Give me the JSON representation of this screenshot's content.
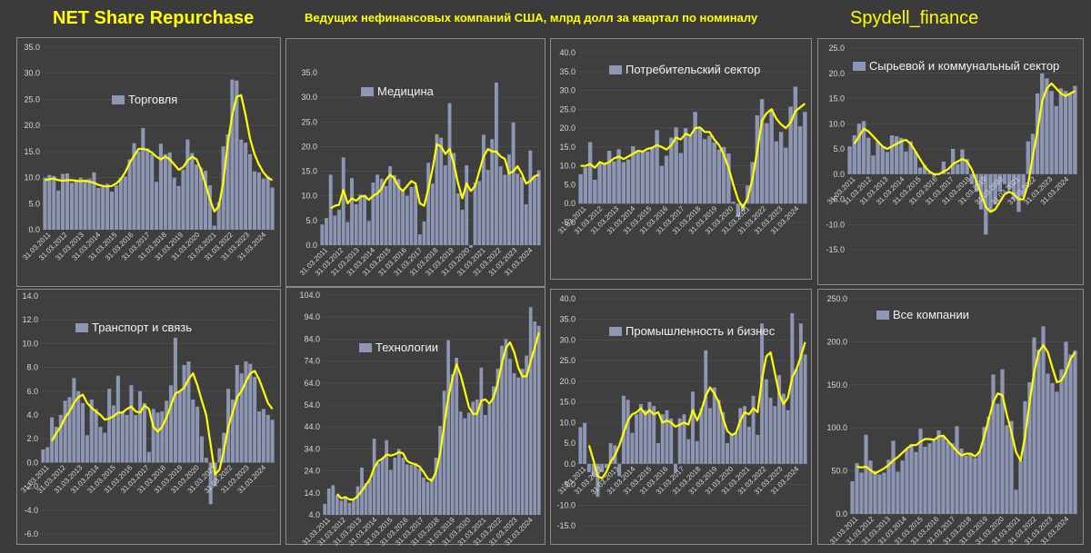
{
  "header": {
    "left": "NET Share Repurchase",
    "center": "Ведущих нефинансовых компаний США, млрд долл за квартал по номиналу",
    "right": "Spydell_finance"
  },
  "colors": {
    "bar": "#8d97b4",
    "line": "#ffff00",
    "text": "#d8d8d8",
    "grid": "#555555",
    "background": "#3f3f3f"
  },
  "year_labels": [
    "31.03.2011",
    "31.03.2012",
    "31.03.2013",
    "31.03.2014",
    "31.03.2015",
    "31.03.2016",
    "31.03.2017",
    "31.03.2018",
    "31.03.2019",
    "31.03.2020",
    "31.03.2021",
    "31.03.2022",
    "31.03.2023",
    "31.03.2024"
  ],
  "chart_data": [
    {
      "type": "bar",
      "title": "Торговля",
      "ylim": [
        0,
        35
      ],
      "yticks": [
        "0.0",
        "5.0",
        "10.0",
        "15.0",
        "20.0",
        "25.0",
        "30.0",
        "35.0"
      ],
      "values": [
        10.0,
        10.5,
        10.3,
        7.5,
        10.7,
        10.8,
        9.0,
        9.3,
        10.0,
        9.6,
        9.8,
        11.0,
        8.0,
        8.2,
        8.8,
        7.3,
        8.5,
        10.0,
        10.2,
        13.5,
        16.6,
        15.0,
        19.5,
        15.6,
        14.5,
        9.2,
        16.5,
        14.5,
        14.8,
        10.0,
        8.4,
        11.5,
        17.3,
        14.7,
        12.5,
        11.9,
        11.3,
        8.5,
        0.8,
        5.3,
        16.0,
        18.3,
        28.8,
        28.6,
        17.3,
        16.7,
        14.5,
        11.2,
        11.0,
        9.8,
        10.2,
        8.1
      ],
      "ma": [
        9.5,
        9.7,
        9.8,
        9.5,
        9.4,
        9.5,
        9.5,
        9.4,
        9.3,
        9.4,
        9.2,
        9.0,
        8.6,
        8.4,
        8.3,
        8.4,
        8.9,
        9.7,
        11.0,
        12.8,
        14.2,
        15.5,
        15.5,
        15.3,
        14.8,
        14.0,
        13.5,
        14.0,
        13.5,
        12.5,
        11.5,
        12.0,
        13.3,
        14.0,
        13.5,
        11.5,
        8.8,
        5.8,
        3.5,
        4.5,
        9.2,
        16.5,
        22.0,
        25.5,
        25.8,
        22.0,
        17.5,
        14.5,
        12.5,
        11.0,
        10.0,
        9.5
      ]
    },
    {
      "type": "bar",
      "title": "Медицина",
      "ylim": [
        0,
        35
      ],
      "yticks": [
        "0.0",
        "5.0",
        "10.0",
        "15.0",
        "20.0",
        "25.0",
        "30.0",
        "35.0"
      ],
      "values": [
        4.2,
        5.5,
        14.3,
        6.0,
        7.2,
        17.8,
        4.7,
        13.6,
        8.3,
        10.3,
        10.2,
        4.9,
        12.7,
        14.3,
        13.5,
        12.0,
        16.0,
        14.2,
        13.4,
        11.0,
        10.0,
        11.8,
        12.0,
        2.2,
        4.8,
        16.7,
        12.5,
        22.5,
        21.8,
        16.2,
        28.8,
        18.7,
        10.5,
        7.2,
        16.2,
        -0.5,
        12.7,
        13.0,
        22.4,
        15.3,
        21.5,
        33.0,
        16.0,
        14.3,
        18.4,
        24.9,
        14.5,
        13.8,
        8.3,
        19.2,
        14.0,
        15.2
      ],
      "ma": [
        null,
        null,
        7.5,
        8.0,
        8.2,
        11.2,
        8.5,
        9.5,
        9.0,
        9.8,
        10.0,
        9.2,
        10.0,
        10.5,
        11.5,
        13.2,
        14.3,
        13.5,
        11.8,
        11.0,
        12.0,
        13.0,
        12.5,
        8.5,
        8.0,
        11.5,
        15.5,
        20.5,
        20.0,
        18.5,
        19.5,
        16.5,
        12.5,
        9.5,
        12.5,
        11.0,
        12.0,
        15.0,
        18.0,
        19.5,
        19.0,
        19.0,
        18.0,
        17.5,
        14.5,
        15.0,
        16.0,
        14.5,
        12.5,
        13.0,
        14.0,
        14.3
      ]
    },
    {
      "type": "bar",
      "title": "Потребительский сектор",
      "ylim": [
        -5,
        40
      ],
      "yticks": [
        "-5.0",
        "0.0",
        "5.0",
        "10.0",
        "15.0",
        "20.0",
        "25.0",
        "30.0",
        "35.0",
        "40.0"
      ],
      "values": [
        7.8,
        9.6,
        16.3,
        6.3,
        10.8,
        10.7,
        14.0,
        11.2,
        14.4,
        11.0,
        11.7,
        15.2,
        13.8,
        14.0,
        13.8,
        15.0,
        19.5,
        10.0,
        12.7,
        17.5,
        20.2,
        13.4,
        20.0,
        18.0,
        24.3,
        20.0,
        17.1,
        18.0,
        16.2,
        14.3,
        15.0,
        13.3,
        0.5,
        -3.5,
        -2.0,
        4.8,
        11.0,
        23.4,
        27.7,
        21.3,
        25.0,
        16.5,
        19.0,
        14.8,
        25.7,
        31.0,
        20.5,
        24.3
      ],
      "ma": [
        10.0,
        10.0,
        10.5,
        9.5,
        11.0,
        10.5,
        11.0,
        12.0,
        12.5,
        11.8,
        12.5,
        13.2,
        14.0,
        13.8,
        14.5,
        14.8,
        15.5,
        15.0,
        14.3,
        15.5,
        17.5,
        17.0,
        18.5,
        18.0,
        20.0,
        20.2,
        19.0,
        19.0,
        17.0,
        15.5,
        13.0,
        9.5,
        5.0,
        1.0,
        -1.0,
        1.5,
        6.5,
        14.0,
        22.0,
        24.0,
        25.0,
        22.5,
        21.0,
        20.0,
        21.5,
        24.5,
        25.5,
        26.5
      ]
    },
    {
      "type": "bar",
      "title": "Сырьевой и коммунальный сектор",
      "ylim": [
        -15,
        25
      ],
      "yticks": [
        "-15.0",
        "-10.0",
        "-5.0",
        "0.0",
        "5.0",
        "10.0",
        "15.0",
        "20.0",
        "25.0"
      ],
      "values": [
        5.5,
        7.7,
        10.0,
        10.5,
        7.2,
        3.7,
        6.5,
        5.4,
        4.4,
        7.7,
        7.5,
        7.2,
        4.5,
        6.5,
        4.5,
        1.3,
        1.8,
        0.4,
        -0.5,
        0.2,
        2.5,
        0.4,
        5.0,
        2.0,
        4.9,
        3.0,
        -2.0,
        -3.5,
        -7.0,
        -12.0,
        -7.5,
        -6.0,
        -3.5,
        -2.0,
        -3.0,
        -5.0,
        -7.5,
        -4.5,
        6.5,
        8.0,
        16.0,
        20.0,
        19.0,
        16.5,
        13.5,
        17.0,
        16.5,
        16.0,
        17.5
      ],
      "ma": [
        null,
        6.0,
        7.5,
        9.0,
        8.5,
        7.5,
        6.5,
        5.5,
        5.0,
        5.5,
        6.0,
        6.5,
        6.8,
        6.0,
        4.5,
        3.0,
        1.5,
        0.5,
        0.0,
        0.0,
        0.5,
        1.0,
        2.0,
        2.5,
        3.0,
        2.5,
        1.0,
        -1.5,
        -4.0,
        -6.5,
        -7.5,
        -7.0,
        -5.5,
        -4.0,
        -3.5,
        -4.0,
        -5.0,
        -5.0,
        -2.0,
        3.5,
        8.5,
        14.5,
        17.0,
        18.0,
        17.0,
        16.0,
        15.5,
        16.0,
        16.5
      ]
    },
    {
      "type": "bar",
      "title": "Транспорт и связь",
      "ylim": [
        -6,
        14
      ],
      "yticks": [
        "-6.0",
        "-4.0",
        "-2.0",
        "0.0",
        "2.0",
        "4.0",
        "6.0",
        "8.0",
        "10.0",
        "12.0",
        "14.0"
      ],
      "values": [
        1.1,
        1.3,
        3.8,
        3.0,
        4.0,
        5.2,
        5.5,
        7.1,
        6.0,
        5.0,
        2.3,
        5.3,
        4.5,
        3.0,
        2.5,
        6.2,
        4.8,
        7.3,
        4.3,
        4.0,
        6.5,
        4.0,
        6.0,
        5.0,
        0.9,
        4.5,
        4.2,
        4.3,
        5.2,
        6.5,
        10.5,
        6.0,
        8.2,
        8.5,
        5.3,
        4.7,
        2.2,
        0.4,
        -3.5,
        -2.0,
        1.2,
        2.5,
        6.2,
        5.3,
        8.2,
        7.5,
        8.5,
        8.3,
        7.2,
        4.3,
        4.5,
        4.0,
        3.6
      ],
      "ma": [
        null,
        null,
        1.8,
        2.5,
        3.0,
        3.8,
        4.3,
        5.0,
        5.5,
        5.7,
        5.0,
        4.6,
        4.3,
        4.0,
        3.6,
        3.7,
        3.9,
        4.2,
        4.2,
        4.5,
        4.7,
        4.3,
        4.2,
        4.8,
        4.5,
        3.0,
        2.6,
        3.0,
        3.8,
        4.8,
        5.8,
        6.0,
        6.3,
        7.0,
        7.5,
        6.5,
        5.2,
        4.0,
        1.5,
        -1.0,
        -0.6,
        1.0,
        3.0,
        4.2,
        5.5,
        6.0,
        6.8,
        7.5,
        7.7,
        7.0,
        6.0,
        5.0,
        4.5
      ]
    },
    {
      "type": "bar",
      "title": "Технологии",
      "ylim": [
        4,
        104
      ],
      "yticks": [
        "4.0",
        "14.0",
        "24.0",
        "34.0",
        "44.0",
        "54.0",
        "64.0",
        "74.0",
        "84.0",
        "94.0",
        "104.0"
      ],
      "values": [
        9.0,
        16.0,
        17.5,
        13.0,
        10.5,
        12.5,
        9.5,
        10.5,
        17.0,
        25.5,
        18.5,
        20.0,
        38.7,
        27.5,
        30.0,
        38.0,
        24.5,
        30.0,
        34.0,
        30.0,
        27.0,
        26.7,
        27.5,
        25.0,
        21.0,
        19.0,
        20.7,
        30.0,
        44.5,
        60.5,
        83.5,
        68.0,
        75.5,
        51.0,
        48.0,
        50.5,
        55.5,
        56.5,
        71.0,
        49.5,
        54.0,
        62.5,
        70.5,
        81.0,
        84.0,
        75.0,
        68.5,
        66.5,
        70.5,
        76.5,
        98.5,
        92.0,
        90.0
      ],
      "ma": [
        null,
        null,
        null,
        13.5,
        11.5,
        12.0,
        11.0,
        11.0,
        12.5,
        15.0,
        17.5,
        20.5,
        25.5,
        28.5,
        29.5,
        31.5,
        31.0,
        31.5,
        32.5,
        32.0,
        28.5,
        27.5,
        27.0,
        26.0,
        23.5,
        20.5,
        19.5,
        23.5,
        32.0,
        45.0,
        57.5,
        66.0,
        72.5,
        67.5,
        60.5,
        53.0,
        50.0,
        50.0,
        56.0,
        56.5,
        54.5,
        57.5,
        64.0,
        73.0,
        80.0,
        82.5,
        78.0,
        71.0,
        67.0,
        67.0,
        74.0,
        80.0,
        87.0
      ]
    },
    {
      "type": "bar",
      "title": "Промышленность и бизнес",
      "ylim": [
        -15,
        40
      ],
      "yticks": [
        "-15.0",
        "-10.0",
        "-5.0",
        "0.0",
        "5.0",
        "10.0",
        "15.0",
        "20.0",
        "25.0",
        "30.0",
        "35.0",
        "40.0"
      ],
      "values": [
        8.9,
        9.9,
        -2.0,
        -3.0,
        -8.0,
        -2.0,
        -1.0,
        5.0,
        4.5,
        -3.0,
        16.5,
        15.5,
        7.5,
        12.0,
        14.5,
        13.0,
        15.0,
        14.0,
        5.0,
        12.0,
        13.0,
        11.0,
        -2.0,
        11.0,
        12.0,
        6.0,
        17.5,
        5.5,
        13.5,
        27.5,
        13.5,
        18.5,
        15.5,
        12.5,
        5.0,
        7.0,
        7.5,
        13.5,
        14.0,
        9.0,
        16.5,
        7.0,
        34.0,
        20.5,
        16.0,
        14.0,
        21.5,
        17.0,
        13.0,
        36.5,
        23.0,
        34.0,
        26.5
      ],
      "ma": [
        null,
        null,
        4.5,
        1.0,
        -3.0,
        -3.5,
        -2.0,
        0.5,
        2.0,
        4.5,
        7.5,
        10.5,
        12.0,
        12.5,
        13.5,
        12.0,
        13.0,
        12.0,
        12.5,
        10.0,
        10.5,
        10.0,
        9.0,
        9.5,
        10.0,
        9.5,
        13.0,
        10.5,
        13.0,
        16.5,
        18.5,
        17.0,
        15.0,
        11.0,
        8.0,
        7.0,
        7.5,
        10.5,
        12.5,
        12.0,
        13.5,
        12.5,
        20.5,
        26.0,
        27.0,
        22.0,
        17.0,
        14.5,
        16.0,
        21.0,
        23.0,
        26.0,
        29.5
      ]
    },
    {
      "type": "bar",
      "title": "Все компании",
      "ylim": [
        0,
        250
      ],
      "yticks": [
        "0.0",
        "50.0",
        "100.0",
        "150.0",
        "200.0",
        "250.0"
      ],
      "values": [
        38.0,
        59.0,
        48.0,
        92.0,
        62.0,
        50.0,
        46.0,
        48.0,
        63.0,
        85.0,
        49.0,
        62.0,
        75.0,
        81.0,
        72.0,
        99.0,
        78.0,
        82.0,
        85.0,
        97.0,
        91.0,
        84.0,
        82.0,
        102.0,
        76.0,
        68.0,
        71.0,
        65.0,
        73.0,
        101.0,
        113.0,
        162.0,
        128.0,
        168.0,
        103.0,
        108.0,
        28.0,
        62.0,
        131.0,
        153.0,
        205.0,
        191.0,
        218.0,
        163.0,
        152.0,
        142.0,
        168.0,
        200.0,
        185.0,
        190.0
      ],
      "ma": [
        null,
        55.0,
        54.0,
        55.0,
        51.0,
        47.0,
        50.0,
        53.0,
        57.0,
        62.0,
        66.0,
        71.0,
        76.0,
        80.0,
        80.0,
        84.0,
        87.0,
        87.0,
        86.0,
        90.0,
        91.0,
        85.0,
        79.0,
        73.0,
        68.0,
        70.0,
        70.0,
        67.0,
        72.0,
        90.0,
        110.0,
        130.0,
        140.0,
        138.0,
        115.0,
        95.0,
        72.0,
        62.0,
        90.0,
        130.0,
        165.0,
        188.0,
        196.0,
        188.0,
        170.0,
        153.0,
        155.0,
        165.0,
        180.0,
        188.0
      ]
    }
  ]
}
